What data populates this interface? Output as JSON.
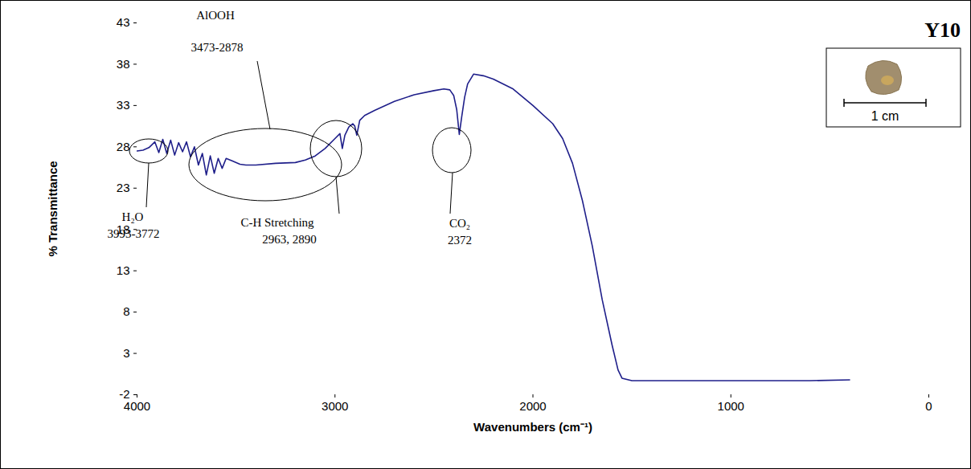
{
  "chart_data": {
    "type": "line",
    "title": "Y10",
    "x_label": "Wavenumbers (cm⁻¹)",
    "y_label": "% Transmittance",
    "x": [
      4000,
      3970,
      3940,
      3910,
      3890,
      3870,
      3850,
      3830,
      3810,
      3790,
      3770,
      3750,
      3730,
      3710,
      3690,
      3670,
      3650,
      3630,
      3610,
      3590,
      3570,
      3550,
      3520,
      3480,
      3450,
      3400,
      3300,
      3200,
      3150,
      3100,
      3050,
      3000,
      2975,
      2963,
      2950,
      2930,
      2910,
      2900,
      2890,
      2875,
      2850,
      2800,
      2700,
      2600,
      2500,
      2450,
      2420,
      2400,
      2385,
      2372,
      2360,
      2345,
      2330,
      2300,
      2250,
      2200,
      2100,
      2000,
      1900,
      1850,
      1800,
      1750,
      1700,
      1650,
      1600,
      1570,
      1550,
      1500,
      1400,
      1200,
      1000,
      800,
      600,
      400
    ],
    "series": [
      {
        "name": "Y10",
        "color": "#1f1f8a",
        "values": [
          27.5,
          27.6,
          27.9,
          28.6,
          27.3,
          28.9,
          27.2,
          28.8,
          27.0,
          28.5,
          27.4,
          28.6,
          26.8,
          28.0,
          25.8,
          27.2,
          24.6,
          26.9,
          24.8,
          26.6,
          25.4,
          26.6,
          26.3,
          25.9,
          25.8,
          25.8,
          26.0,
          26.1,
          26.4,
          26.9,
          27.8,
          29.0,
          29.6,
          27.8,
          29.4,
          30.4,
          30.8,
          30.5,
          29.4,
          31.2,
          31.8,
          32.4,
          33.5,
          34.3,
          34.8,
          35.0,
          34.9,
          34.2,
          32.5,
          29.5,
          31.6,
          34.0,
          35.6,
          36.8,
          36.6,
          36.2,
          35.0,
          33.0,
          30.8,
          29.0,
          26.0,
          21.5,
          16.0,
          9.5,
          4.0,
          1.0,
          0.0,
          -0.3,
          -0.3,
          -0.3,
          -0.3,
          -0.3,
          -0.3,
          -0.2
        ]
      }
    ],
    "xlim": [
      4000,
      0
    ],
    "xticks": [
      4000,
      3000,
      2000,
      1000,
      0
    ],
    "ylim": [
      -2,
      43
    ],
    "yticks": [
      -2,
      3,
      8,
      13,
      18,
      23,
      28,
      33,
      38,
      43
    ],
    "grid": false,
    "annotations": [
      {
        "label": "H₂O",
        "detail": "3993-3772"
      },
      {
        "label": "AlOOH",
        "detail": "3473-2878"
      },
      {
        "label": "C-H Stretching",
        "detail": "2963, 2890"
      },
      {
        "label": "CO₂",
        "detail": "2372"
      }
    ],
    "inset": {
      "scale_label": "1 cm"
    }
  }
}
